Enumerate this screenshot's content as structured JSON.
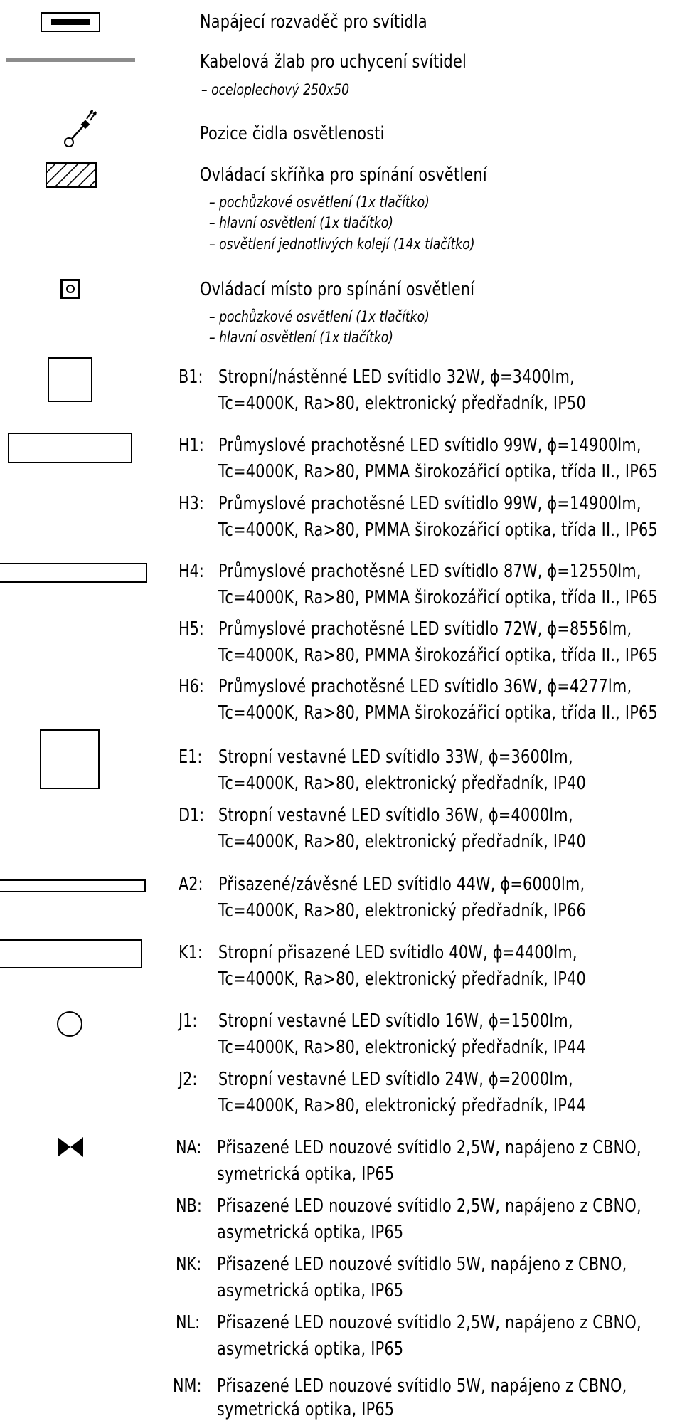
{
  "legend": [
    {
      "kind": "text",
      "text": "Napájecí rozvaděč pro svítidla"
    },
    {
      "kind": "text",
      "text": "Kabelová žlab pro uchycení svítidel"
    },
    {
      "kind": "sub",
      "text": "– oceloplechový 250x50"
    },
    {
      "kind": "text",
      "text": "Pozice čidla osvětlenosti"
    },
    {
      "kind": "text",
      "text": "Ovládací skříňka pro spínání osvětlení"
    },
    {
      "kind": "sub",
      "text": "– pochůzkové osvětlení (1x tlačítko)"
    },
    {
      "kind": "sub",
      "text": "– hlavní osvětlení (1x tlačítko)"
    },
    {
      "kind": "sub",
      "text": "– osvětlení jednotlivých kolejí (14x tlačítko)"
    },
    {
      "kind": "text",
      "text": "Ovládací místo pro spínání osvětlení"
    },
    {
      "kind": "sub",
      "text": "– pochůzkové osvětlení (1x tlačítko)"
    },
    {
      "kind": "sub",
      "text": "– hlavní osvětlení (1x tlačítko)"
    }
  ],
  "luminaires": [
    {
      "code": "B1:",
      "line1": "Stropní/nástěnné LED svítidlo 32W, ϕ=3400lm,",
      "line2": "Tc=4000K, Ra>80, elektronický předřadník, IP50"
    },
    {
      "code": "H1:",
      "line1": "Průmyslové prachotěsné LED svítidlo 99W, ϕ=14900lm,",
      "line2": "Tc=4000K, Ra>80, PMMA širokozářicí optika, třída II., IP65"
    },
    {
      "code": "H3:",
      "line1": "Průmyslové prachotěsné LED svítidlo 99W, ϕ=14900lm,",
      "line2": "Tc=4000K, Ra>80, PMMA širokozářicí optika, třída II., IP65"
    },
    {
      "code": "H4:",
      "line1": "Průmyslové prachotěsné LED svítidlo 87W, ϕ=12550lm,",
      "line2": "Tc=4000K, Ra>80, PMMA širokozářicí optika, třída II., IP65"
    },
    {
      "code": "H5:",
      "line1": "Průmyslové prachotěsné LED svítidlo 72W, ϕ=8556lm,",
      "line2": "Tc=4000K, Ra>80, PMMA širokozářicí optika, třída II., IP65"
    },
    {
      "code": "H6:",
      "line1": "Průmyslové prachotěsné LED svítidlo 36W, ϕ=4277lm,",
      "line2": "Tc=4000K, Ra>80, PMMA širokozářicí optika, třída II., IP65"
    },
    {
      "code": "E1:",
      "line1": "Stropní vestavné LED svítidlo 33W, ϕ=3600lm,",
      "line2": "Tc=4000K, Ra>80, elektronický předřadník, IP40"
    },
    {
      "code": "D1:",
      "line1": "Stropní vestavné LED svítidlo 36W, ϕ=4000lm,",
      "line2": "Tc=4000K, Ra>80, elektronický předřadník, IP40"
    },
    {
      "code": "A2:",
      "line1": "Přisazené/závěsné LED svítidlo 44W, ϕ=6000lm,",
      "line2": "Tc=4000K, Ra>80, elektronický předřadník, IP66"
    },
    {
      "code": "K1:",
      "line1": "Stropní přisazené LED svítidlo 40W, ϕ=4400lm,",
      "line2": "Tc=4000K, Ra>80, elektronický předřadník, IP40"
    },
    {
      "code": "J1:",
      "line1": "Stropní vestavné LED svítidlo 16W, ϕ=1500lm,",
      "line2": "Tc=4000K, Ra>80, elektronický předřadník, IP44"
    },
    {
      "code": "J2:",
      "line1": "Stropní vestavné LED svítidlo 24W, ϕ=2000lm,",
      "line2": "Tc=4000K, Ra>80, elektronický předřadník, IP44"
    },
    {
      "code": "NA:",
      "line1": "Přisazené LED nouzové svítidlo 2,5W, napájeno z CBNO,",
      "line2": "symetrická optika, IP65"
    },
    {
      "code": "NB:",
      "line1": "Přisazené LED nouzové svítidlo 2,5W, napájeno z CBNO,",
      "line2": "asymetrická optika, IP65"
    },
    {
      "code": "NK:",
      "line1": "Přisazené LED nouzové svítidlo 5W, napájeno z CBNO,",
      "line2": "asymetrická optika, IP65"
    },
    {
      "code": "NL:",
      "line1": "Přisazené LED nouzové svítidlo 2,5W, napájeno z CBNO,",
      "line2": "asymetrická optika, IP65"
    },
    {
      "code": "NM:",
      "line1": "Přisazené LED nouzové svítidlo 5W, napájeno z CBNO,",
      "line2": "symetrická optika, IP65"
    }
  ],
  "symbols": {
    "distribution_board": "distribution-board-symbol",
    "cable_tray": "cable-tray-symbol",
    "light_sensor": "light-sensor-symbol",
    "control_box": "control-box-symbol",
    "control_point": "control-point-symbol",
    "emergency_light": "emergency-light-symbol",
    "cable_tray_color": "#8c8c8c"
  }
}
